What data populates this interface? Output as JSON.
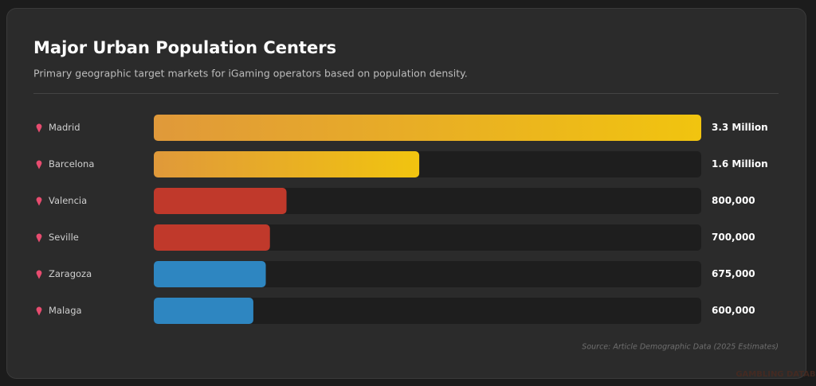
{
  "chart_data": {
    "type": "bar",
    "orientation": "horizontal",
    "title": "Major Urban Population Centers",
    "subtitle": "Primary geographic target markets for iGaming operators based on population density.",
    "categories": [
      "Madrid",
      "Barcelona",
      "Valencia",
      "Seville",
      "Zaragoza",
      "Malaga"
    ],
    "values": [
      3300000,
      1600000,
      800000,
      700000,
      675000,
      600000
    ],
    "value_labels": [
      "3.3 Million",
      "1.6 Million",
      "800,000",
      "700,000",
      "675,000",
      "600,000"
    ],
    "colors": [
      [
        "#e0993a",
        "#f1c40f"
      ],
      [
        "#e0993a",
        "#f1c40f"
      ],
      [
        "#c0392b"
      ],
      [
        "#c0392b"
      ],
      [
        "#2e86c1"
      ],
      [
        "#2e86c1"
      ]
    ],
    "track_color": "#1e1e1e",
    "source": "Source: Article Demographic Data (2025 Estimates)",
    "watermark": "GAMBLING DATABASES"
  }
}
